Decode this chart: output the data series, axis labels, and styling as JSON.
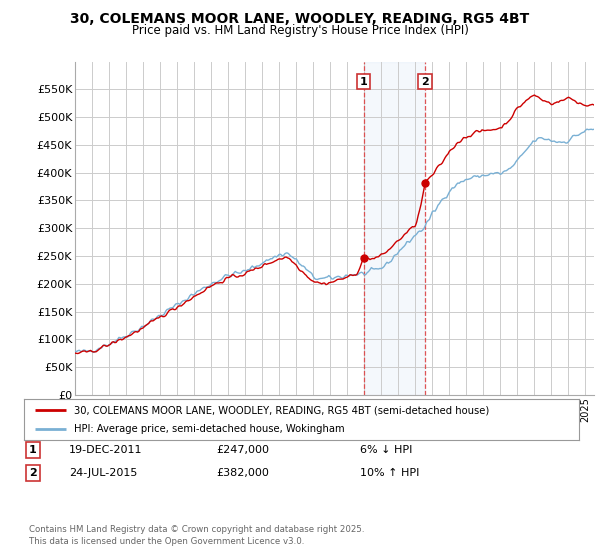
{
  "title": "30, COLEMANS MOOR LANE, WOODLEY, READING, RG5 4BT",
  "subtitle": "Price paid vs. HM Land Registry's House Price Index (HPI)",
  "legend_line1": "30, COLEMANS MOOR LANE, WOODLEY, READING, RG5 4BT (semi-detached house)",
  "legend_line2": "HPI: Average price, semi-detached house, Wokingham",
  "footer": "Contains HM Land Registry data © Crown copyright and database right 2025.\nThis data is licensed under the Open Government Licence v3.0.",
  "transaction1_date": "19-DEC-2011",
  "transaction1_price": "£247,000",
  "transaction1_hpi": "6% ↓ HPI",
  "transaction2_date": "24-JUL-2015",
  "transaction2_price": "£382,000",
  "transaction2_hpi": "10% ↑ HPI",
  "red_color": "#cc0000",
  "blue_color": "#7ab0d4",
  "background_color": "#ffffff",
  "grid_color": "#cccccc",
  "ylim": [
    0,
    600000
  ],
  "yticks": [
    0,
    50000,
    100000,
    150000,
    200000,
    250000,
    300000,
    350000,
    400000,
    450000,
    500000,
    550000
  ],
  "ytick_labels": [
    "£0",
    "£50K",
    "£100K",
    "£150K",
    "£200K",
    "£250K",
    "£300K",
    "£350K",
    "£400K",
    "£450K",
    "£500K",
    "£550K"
  ],
  "transaction1_x": 2011.96,
  "transaction1_y": 247000,
  "transaction2_x": 2015.56,
  "transaction2_y": 382000,
  "xmin": 1995,
  "xmax": 2025.5
}
